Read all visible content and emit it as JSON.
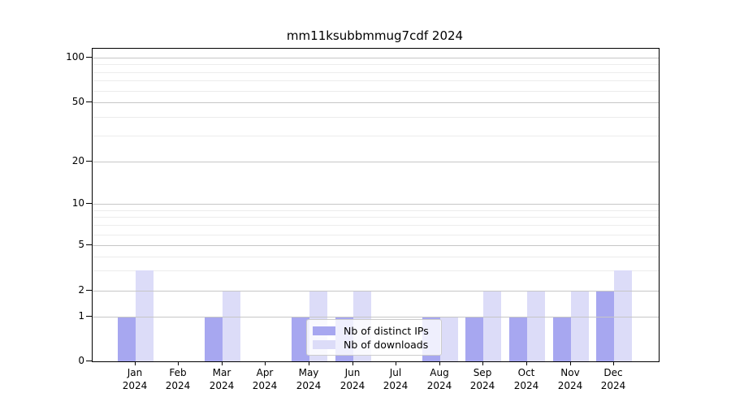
{
  "title": "mm11ksubbmmug7cdf 2024",
  "chart_data": {
    "type": "bar",
    "title": "mm11ksubbmmug7cdf 2024",
    "categories": [
      "Jan 2024",
      "Feb 2024",
      "Mar 2024",
      "Apr 2024",
      "May 2024",
      "Jun 2024",
      "Jul 2024",
      "Aug 2024",
      "Sep 2024",
      "Oct 2024",
      "Nov 2024",
      "Dec 2024"
    ],
    "series": [
      {
        "name": "Nb of distinct IPs",
        "color": "#a7a7f0",
        "values": [
          1,
          0,
          1,
          0,
          1,
          1,
          0,
          1,
          1,
          1,
          1,
          2
        ]
      },
      {
        "name": "Nb of downloads",
        "color": "#dcdcf8",
        "values": [
          3,
          0,
          2,
          0,
          2,
          2,
          0,
          1,
          2,
          2,
          2,
          3
        ]
      }
    ],
    "xlabel": "",
    "ylabel": "",
    "yscale": "symlog",
    "ylim": [
      0,
      115
    ],
    "y_ticks": [
      0,
      1,
      2,
      5,
      10,
      20,
      50,
      100
    ],
    "y_minor_ticks": [
      3,
      4,
      6,
      7,
      8,
      9,
      30,
      40,
      60,
      70,
      80,
      90
    ],
    "grid": true,
    "legend_position": "lower center"
  },
  "x_axis": {
    "months": [
      "Jan",
      "Feb",
      "Mar",
      "Apr",
      "May",
      "Jun",
      "Jul",
      "Aug",
      "Sep",
      "Oct",
      "Nov",
      "Dec"
    ],
    "year": "2024"
  },
  "colors": {
    "distinct_ips": "#a7a7f0",
    "downloads": "#dcdcf8",
    "major_grid": "#c6c6c6",
    "minor_grid": "#ececec",
    "spine": "#000000"
  }
}
